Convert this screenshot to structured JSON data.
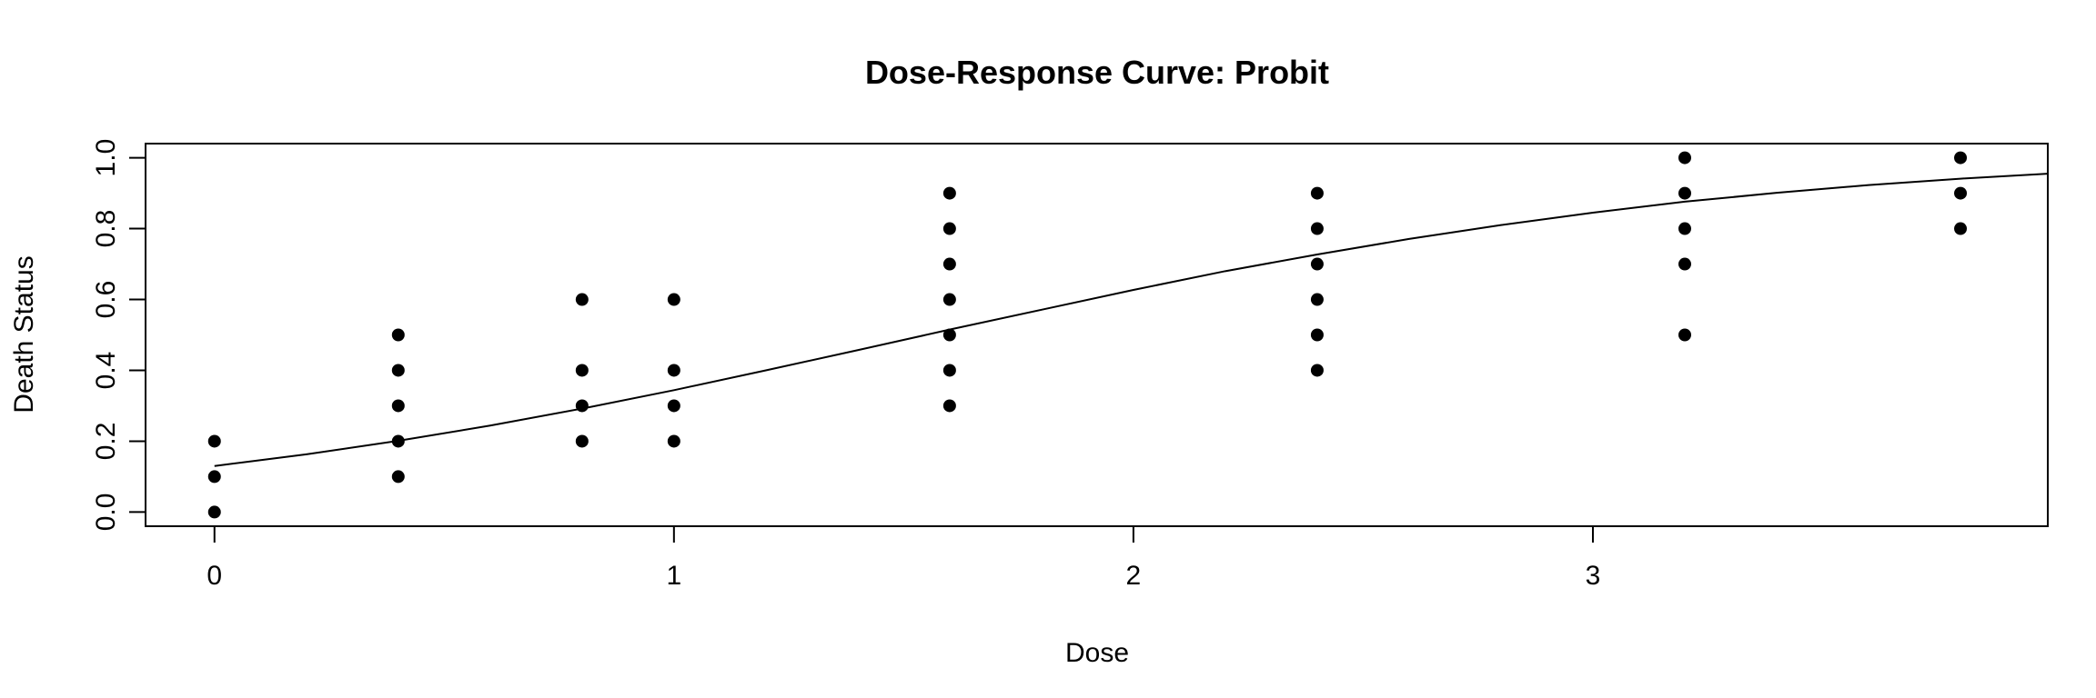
{
  "chart_data": {
    "type": "scatter",
    "title": "Dose-Response Curve: Probit",
    "xlabel": "Dose",
    "ylabel": "Death Status",
    "xlim": [
      -0.15,
      3.99
    ],
    "ylim": [
      -0.04,
      1.04
    ],
    "xticks": [
      0,
      1,
      2,
      3
    ],
    "xtick_labels": [
      "0",
      "1",
      "2",
      "3"
    ],
    "yticks": [
      0.0,
      0.2,
      0.4,
      0.6,
      0.8,
      1.0
    ],
    "ytick_labels": [
      "0.0",
      "0.2",
      "0.4",
      "0.6",
      "0.8",
      "1.0"
    ],
    "grid": false,
    "legend": "none",
    "point_color": "#000000",
    "line_color": "#000000",
    "points": [
      {
        "x": 0,
        "y": 0.0
      },
      {
        "x": 0,
        "y": 0.1
      },
      {
        "x": 0,
        "y": 0.2
      },
      {
        "x": 0.4,
        "y": 0.1
      },
      {
        "x": 0.4,
        "y": 0.2
      },
      {
        "x": 0.4,
        "y": 0.3
      },
      {
        "x": 0.4,
        "y": 0.4
      },
      {
        "x": 0.4,
        "y": 0.5
      },
      {
        "x": 0.8,
        "y": 0.2
      },
      {
        "x": 0.8,
        "y": 0.3
      },
      {
        "x": 0.8,
        "y": 0.4
      },
      {
        "x": 0.8,
        "y": 0.6
      },
      {
        "x": 1.0,
        "y": 0.2
      },
      {
        "x": 1.0,
        "y": 0.3
      },
      {
        "x": 1.0,
        "y": 0.4
      },
      {
        "x": 1.0,
        "y": 0.6
      },
      {
        "x": 1.6,
        "y": 0.3
      },
      {
        "x": 1.6,
        "y": 0.4
      },
      {
        "x": 1.6,
        "y": 0.5
      },
      {
        "x": 1.6,
        "y": 0.6
      },
      {
        "x": 1.6,
        "y": 0.7
      },
      {
        "x": 1.6,
        "y": 0.8
      },
      {
        "x": 1.6,
        "y": 0.9
      },
      {
        "x": 2.4,
        "y": 0.4
      },
      {
        "x": 2.4,
        "y": 0.5
      },
      {
        "x": 2.4,
        "y": 0.6
      },
      {
        "x": 2.4,
        "y": 0.7
      },
      {
        "x": 2.4,
        "y": 0.8
      },
      {
        "x": 2.4,
        "y": 0.9
      },
      {
        "x": 3.2,
        "y": 0.5
      },
      {
        "x": 3.2,
        "y": 0.7
      },
      {
        "x": 3.2,
        "y": 0.8
      },
      {
        "x": 3.2,
        "y": 0.9
      },
      {
        "x": 3.2,
        "y": 1.0
      },
      {
        "x": 3.8,
        "y": 0.8
      },
      {
        "x": 3.8,
        "y": 0.9
      },
      {
        "x": 3.8,
        "y": 1.0
      }
    ],
    "fitted_curve": {
      "x": [
        0.0,
        0.2,
        0.4,
        0.6,
        0.8,
        1.0,
        1.2,
        1.4,
        1.6,
        1.8,
        2.0,
        2.2,
        2.4,
        2.6,
        2.8,
        3.0,
        3.2,
        3.4,
        3.6,
        3.8,
        3.99
      ],
      "y": [
        0.13,
        0.163,
        0.201,
        0.244,
        0.292,
        0.344,
        0.4,
        0.457,
        0.515,
        0.571,
        0.627,
        0.68,
        0.727,
        0.771,
        0.81,
        0.845,
        0.876,
        0.901,
        0.923,
        0.941,
        0.955
      ]
    }
  }
}
